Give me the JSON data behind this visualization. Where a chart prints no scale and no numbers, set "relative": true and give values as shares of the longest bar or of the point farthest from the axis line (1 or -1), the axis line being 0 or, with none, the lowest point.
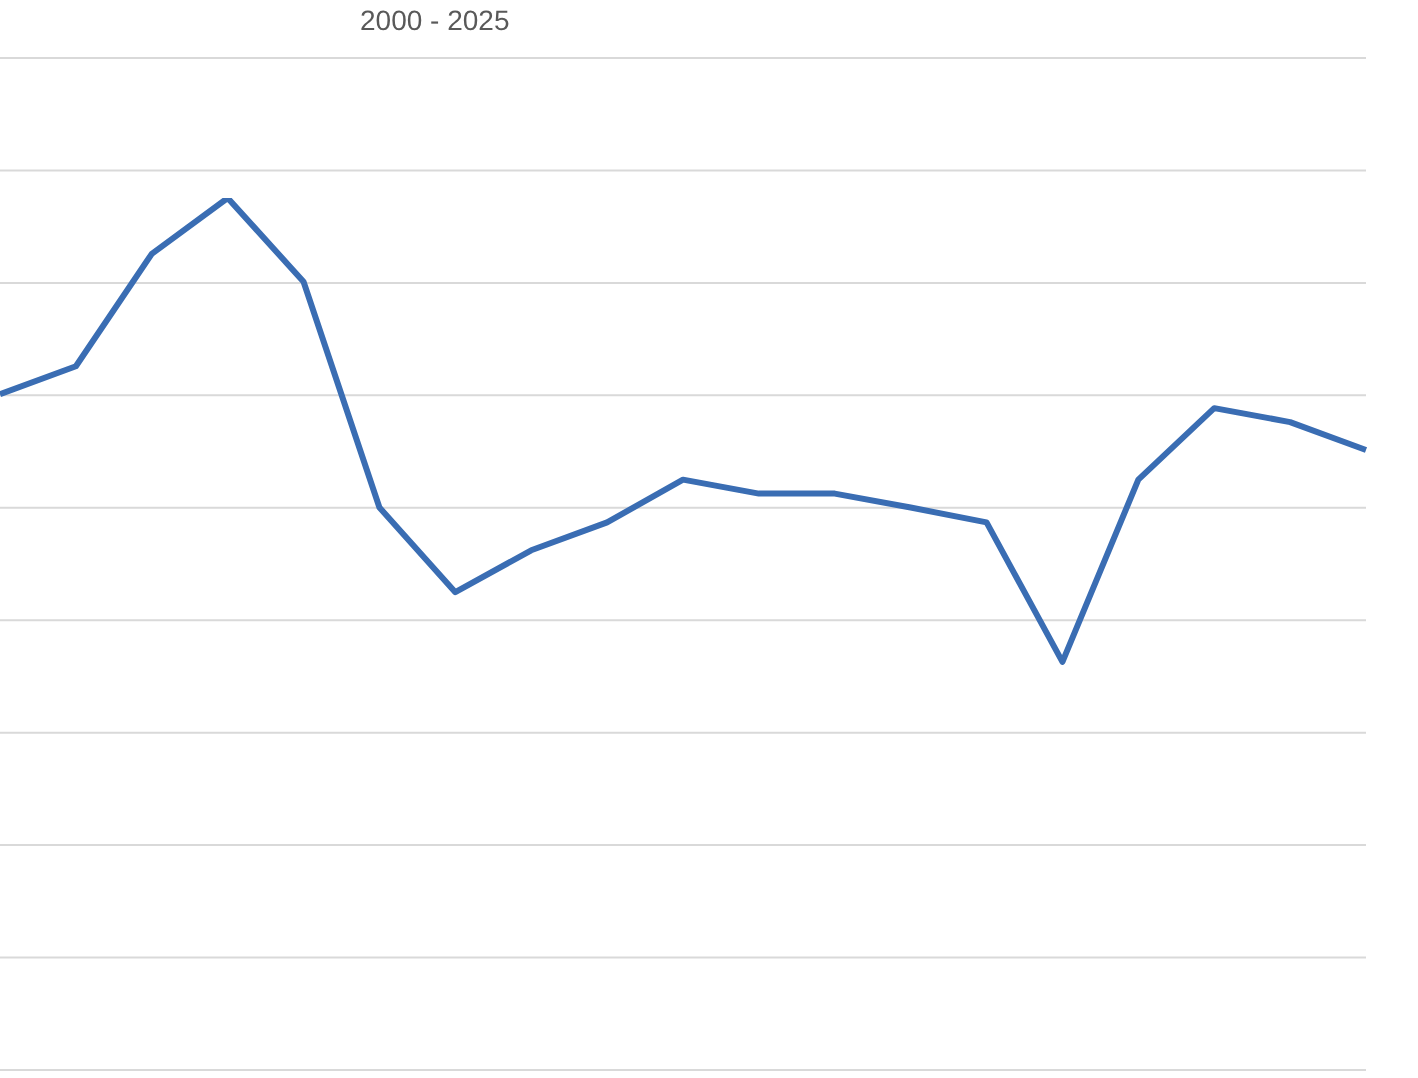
{
  "chart_data": {
    "type": "line",
    "subtitle": "2000 - 2025",
    "relative": true,
    "grid": "y",
    "categories": [
      null,
      null,
      null,
      null,
      null,
      null,
      null,
      null,
      null,
      null,
      null,
      null,
      null,
      null,
      null,
      null,
      null,
      null,
      null
    ],
    "series": [
      {
        "color": "#3a6db3",
        "values": [
          0.775,
          0.807,
          0.936,
          1,
          0.904,
          0.645,
          0.548,
          0.596,
          0.628,
          0.677,
          0.661,
          0.661,
          0.645,
          0.628,
          0.468,
          0.677,
          0.759,
          0.743,
          0.711
        ]
      }
    ]
  }
}
